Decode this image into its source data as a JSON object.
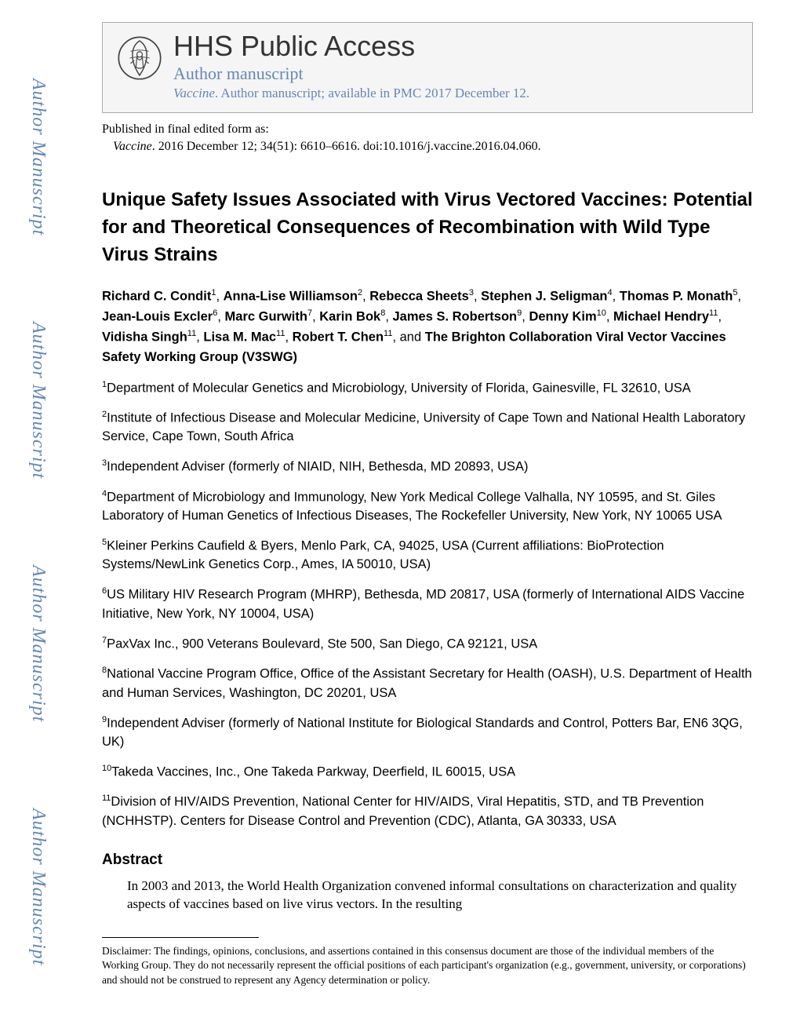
{
  "watermark": "Author Manuscript",
  "header": {
    "title": "HHS Public Access",
    "subtitle": "Author manuscript",
    "journal_name": "Vaccine",
    "journal_rest": ". Author manuscript; available in PMC 2017 December 12."
  },
  "publication": {
    "line1": "Published in final edited form as:",
    "journal": "Vaccine",
    "citation": ". 2016 December 12; 34(51): 6610–6616. doi:10.1016/j.vaccine.2016.04.060."
  },
  "title": "Unique Safety Issues Associated with Virus Vectored Vaccines: Potential for and Theoretical Consequences of Recombination with Wild Type Virus Strains",
  "authors_html": "<b>Richard C. Condit</b><sup>1</sup>, <b>Anna-Lise Williamson</b><sup>2</sup>, <b>Rebecca Sheets</b><sup>3</sup>, <b>Stephen J. Seligman</b><sup>4</sup>, <b>Thomas P. Monath</b><sup>5</sup>, <b>Jean-Louis Excler</b><sup>6</sup>, <b>Marc Gurwith</b><sup>7</sup>, <b>Karin Bok</b><sup>8</sup>, <b>James S. Robertson</b><sup>9</sup>, <b>Denny Kim</b><sup>10</sup>, <b>Michael Hendry</b><sup>11</sup>, <b>Vidisha Singh</b><sup>11</sup>, <b>Lisa M. Mac</b><sup>11</sup>, <b>Robert T. Chen</b><sup>11</sup>, and <b>The Brighton Collaboration Viral Vector Vaccines Safety Working Group (V3SWG)</b>",
  "affiliations": [
    "<sup>1</sup>Department of Molecular Genetics and Microbiology, University of Florida, Gainesville, FL 32610, USA",
    "<sup>2</sup>Institute of Infectious Disease and Molecular Medicine, University of Cape Town and National Health Laboratory Service, Cape Town, South Africa",
    "<sup>3</sup>Independent Adviser (formerly of NIAID, NIH, Bethesda, MD 20893, USA)",
    "<sup>4</sup>Department of Microbiology and Immunology, New York Medical College Valhalla, NY 10595, and St. Giles Laboratory of Human Genetics of Infectious Diseases, The Rockefeller University, New York, NY 10065 USA",
    "<sup>5</sup>Kleiner Perkins Caufield & Byers, Menlo Park, CA, 94025, USA (Current affiliations: BioProtection Systems/NewLink Genetics Corp., Ames, IA 50010, USA)",
    "<sup>6</sup>US Military HIV Research Program (MHRP), Bethesda, MD 20817, USA (formerly of International AIDS Vaccine Initiative, New York, NY 10004, USA)",
    "<sup>7</sup>PaxVax Inc., 900 Veterans Boulevard, Ste 500, San Diego, CA 92121, USA",
    "<sup>8</sup>National Vaccine Program Office, Office of the Assistant Secretary for Health (OASH), U.S. Department of Health and Human Services, Washington, DC 20201, USA",
    "<sup>9</sup>Independent Adviser (formerly of National Institute for Biological Standards and Control, Potters Bar, EN6 3QG, UK)",
    "<sup>10</sup>Takeda Vaccines, Inc., One Takeda Parkway, Deerfield, IL 60015, USA",
    "<sup>11</sup>Division of HIV/AIDS Prevention, National Center for HIV/AIDS, Viral Hepatitis, STD, and TB Prevention (NCHHSTP). Centers for Disease Control and Prevention (CDC), Atlanta, GA 30333, USA"
  ],
  "abstract": {
    "heading": "Abstract",
    "body": "In 2003 and 2013, the World Health Organization convened informal consultations on characterization and quality aspects of vaccines based on live virus vectors. In the resulting"
  },
  "footnote": "Disclaimer: The findings, opinions, conclusions, and assertions contained in this consensus document are those of the individual members of the Working Group. They do not necessarily represent the official positions of each participant's organization (e.g., government, university, or corporations) and should not be construed to represent any Agency determination or policy."
}
